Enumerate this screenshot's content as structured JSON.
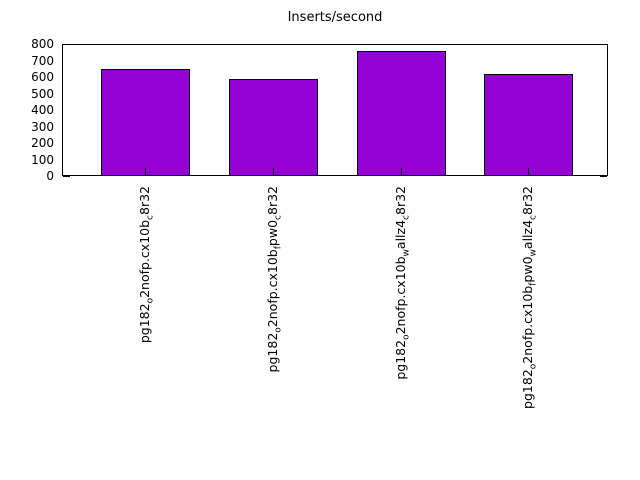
{
  "chart_data": {
    "type": "bar",
    "title": "Inserts/second",
    "categories": [
      "pg182_o2nofp.cx10b_c8r32",
      "pg182_o2nofp.cx10b_fpw0_c8r32",
      "pg182_o2nofp.cx10b_wallz4_c8r32",
      "pg182_o2nofp.cx10b_fpw0_wallz4_c8r32"
    ],
    "values": [
      650,
      590,
      755,
      620
    ],
    "xlabel": "",
    "ylabel": "",
    "ylim": [
      0,
      800
    ],
    "ytick_step": 100,
    "ytick_labels": [
      "0",
      "100",
      "200",
      "300",
      "400",
      "500",
      "600",
      "700",
      "800"
    ],
    "legend": "none",
    "grid": "off",
    "bar_color": "#9400d3",
    "bar_border_color": "#000000",
    "background_color": "#ffffff",
    "text_color": "#000000"
  }
}
